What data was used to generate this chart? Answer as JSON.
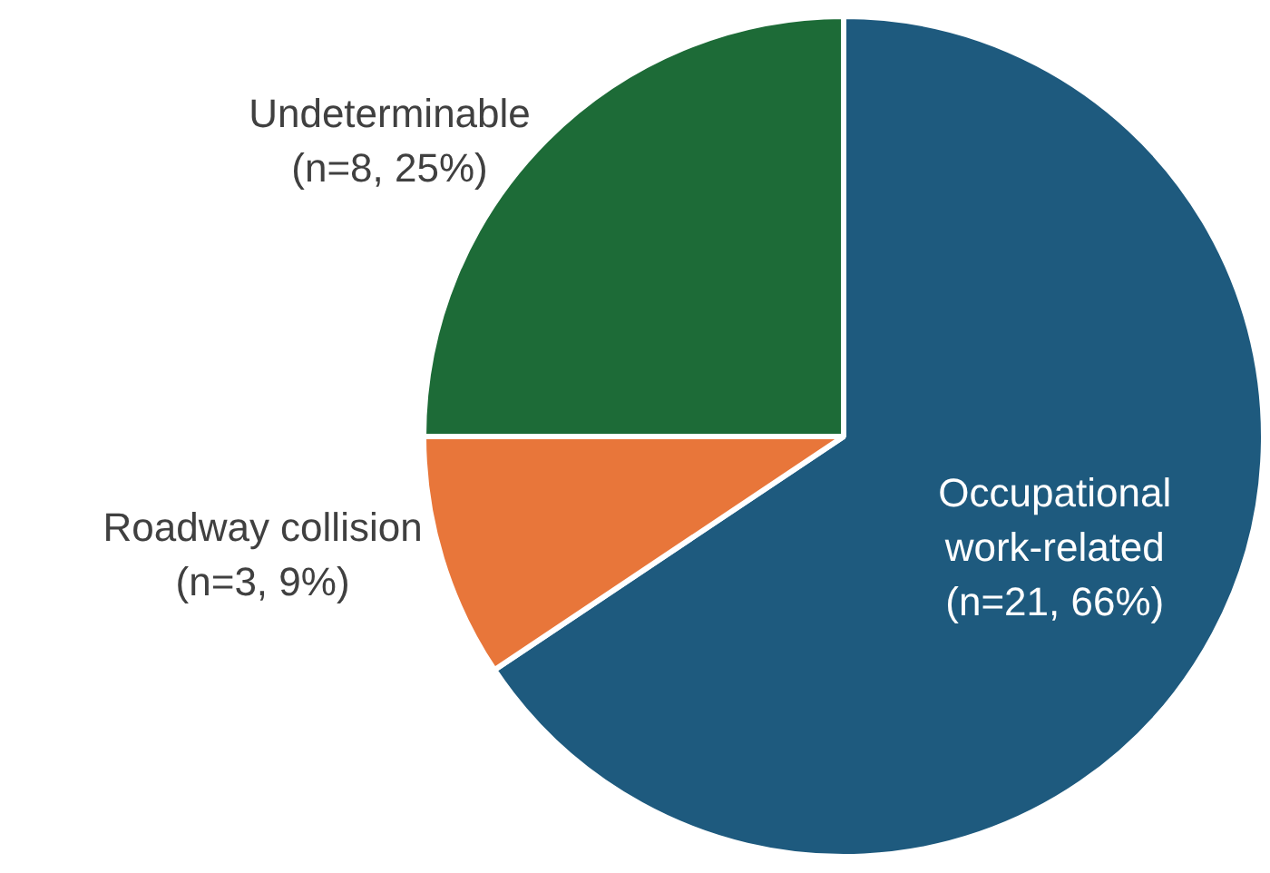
{
  "chart_data": {
    "type": "pie",
    "categories": [
      "Occupational work-related",
      "Roadway collision",
      "Undeterminable"
    ],
    "values": [
      21,
      3,
      8
    ],
    "colors": [
      "#1e5a7e",
      "#e8763a",
      "#1d6b37"
    ],
    "value_labels": [
      "(n=21, 66%)",
      "(n=3, 9%)",
      "(n=8, 25%)"
    ],
    "legend": false
  }
}
